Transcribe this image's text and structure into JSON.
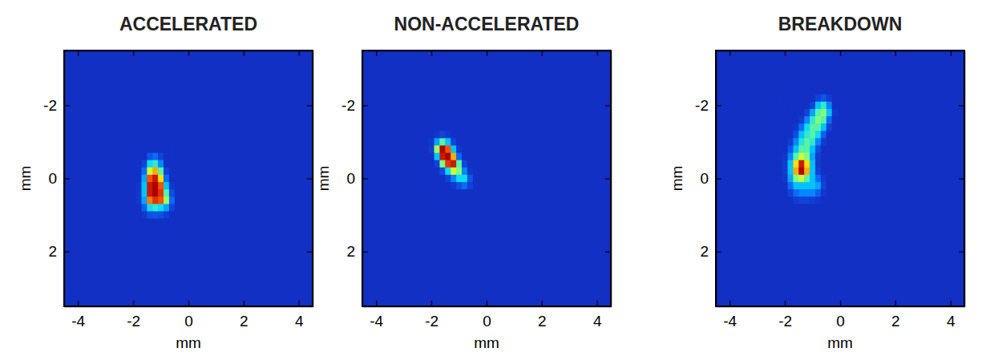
{
  "chart_data": [
    {
      "type": "heatmap",
      "title": "ACCELERATED",
      "xlabel": "mm",
      "ylabel": "mm",
      "xlim": [
        -4.5,
        4.5
      ],
      "ylim": [
        -3.5,
        3.5
      ],
      "xticks": [
        -4,
        -2,
        0,
        2,
        4
      ],
      "yticks": [
        -2,
        0,
        2
      ],
      "zlim": [
        0,
        1
      ],
      "x": [
        -2.0,
        -1.8,
        -1.6,
        -1.4,
        -1.2,
        -1.0,
        -0.8,
        -0.6,
        -0.4
      ],
      "y": [
        -0.8,
        -0.6,
        -0.4,
        -0.2,
        0.0,
        0.2,
        0.4,
        0.6,
        0.8,
        1.0,
        1.2
      ],
      "z": [
        [
          0,
          0,
          0,
          0,
          0,
          0,
          0,
          0,
          0
        ],
        [
          0,
          0,
          0,
          0.1,
          0.15,
          0.05,
          0,
          0,
          0
        ],
        [
          0,
          0,
          0.05,
          0.35,
          0.4,
          0.2,
          0,
          0,
          0
        ],
        [
          0,
          0,
          0.15,
          0.6,
          0.75,
          0.45,
          0.05,
          0,
          0
        ],
        [
          0,
          0,
          0.25,
          0.85,
          0.95,
          0.7,
          0.15,
          0,
          0
        ],
        [
          0,
          0.02,
          0.3,
          0.95,
          1.0,
          0.85,
          0.3,
          0.02,
          0
        ],
        [
          0,
          0.02,
          0.3,
          0.95,
          1.0,
          0.9,
          0.45,
          0.08,
          0
        ],
        [
          0,
          0.02,
          0.25,
          0.8,
          0.9,
          0.85,
          0.55,
          0.15,
          0
        ],
        [
          0,
          0,
          0.12,
          0.35,
          0.4,
          0.35,
          0.25,
          0.06,
          0
        ],
        [
          0,
          0,
          0.02,
          0.08,
          0.1,
          0.08,
          0.04,
          0,
          0
        ],
        [
          0,
          0,
          0,
          0,
          0,
          0,
          0,
          0,
          0
        ]
      ]
    },
    {
      "type": "heatmap",
      "title": "NON-ACCELERATED",
      "xlabel": "mm",
      "ylabel": "mm",
      "xlim": [
        -4.5,
        4.5
      ],
      "ylim": [
        -3.5,
        3.5
      ],
      "xticks": [
        -4,
        -2,
        0,
        2,
        4
      ],
      "yticks": [
        -2,
        0,
        2
      ],
      "zlim": [
        0,
        1
      ],
      "x": [
        -2.2,
        -2.0,
        -1.8,
        -1.6,
        -1.4,
        -1.2,
        -1.0,
        -0.8,
        -0.6,
        -0.4
      ],
      "y": [
        -1.4,
        -1.2,
        -1.0,
        -0.8,
        -0.6,
        -0.4,
        -0.2,
        0.0,
        0.2,
        0.4
      ],
      "z": [
        [
          0,
          0,
          0,
          0,
          0,
          0,
          0,
          0,
          0,
          0
        ],
        [
          0,
          0,
          0.02,
          0.05,
          0.02,
          0,
          0,
          0,
          0,
          0
        ],
        [
          0,
          0.02,
          0.25,
          0.45,
          0.3,
          0.05,
          0,
          0,
          0,
          0
        ],
        [
          0,
          0.03,
          0.55,
          1.0,
          0.85,
          0.3,
          0.02,
          0,
          0,
          0
        ],
        [
          0,
          0,
          0.3,
          0.95,
          1.0,
          0.75,
          0.15,
          0,
          0,
          0
        ],
        [
          0,
          0,
          0.05,
          0.5,
          0.9,
          0.95,
          0.45,
          0.05,
          0,
          0
        ],
        [
          0,
          0,
          0,
          0.08,
          0.35,
          0.6,
          0.5,
          0.2,
          0.02,
          0
        ],
        [
          0,
          0,
          0,
          0,
          0.05,
          0.2,
          0.35,
          0.35,
          0.1,
          0
        ],
        [
          0,
          0,
          0,
          0,
          0,
          0.02,
          0.08,
          0.15,
          0.05,
          0
        ],
        [
          0,
          0,
          0,
          0,
          0,
          0,
          0,
          0,
          0,
          0
        ]
      ]
    },
    {
      "type": "heatmap",
      "title": "BREAKDOWN",
      "xlabel": "mm",
      "ylabel": "mm",
      "xlim": [
        -4.5,
        4.5
      ],
      "ylim": [
        -3.5,
        3.5
      ],
      "xticks": [
        -4,
        -2,
        0,
        2,
        4
      ],
      "yticks": [
        -2,
        0,
        2
      ],
      "zlim": [
        0,
        1
      ],
      "x": [
        -2.2,
        -2.0,
        -1.8,
        -1.6,
        -1.4,
        -1.2,
        -1.0,
        -0.8,
        -0.6,
        -0.4,
        -0.2
      ],
      "y": [
        -2.4,
        -2.2,
        -2.0,
        -1.8,
        -1.6,
        -1.4,
        -1.2,
        -1.0,
        -0.8,
        -0.6,
        -0.4,
        -0.2,
        0.0,
        0.2,
        0.4,
        0.6,
        0.8
      ],
      "z": [
        [
          0,
          0,
          0,
          0,
          0,
          0,
          0,
          0,
          0,
          0,
          0
        ],
        [
          0,
          0,
          0,
          0,
          0,
          0,
          0,
          0.05,
          0.1,
          0.03,
          0
        ],
        [
          0,
          0,
          0,
          0,
          0,
          0,
          0.05,
          0.3,
          0.4,
          0.2,
          0
        ],
        [
          0,
          0,
          0,
          0,
          0,
          0.05,
          0.25,
          0.45,
          0.5,
          0.3,
          0.02
        ],
        [
          0,
          0,
          0,
          0,
          0.03,
          0.2,
          0.4,
          0.5,
          0.45,
          0.15,
          0
        ],
        [
          0,
          0,
          0,
          0.02,
          0.15,
          0.35,
          0.45,
          0.45,
          0.3,
          0.05,
          0
        ],
        [
          0,
          0,
          0,
          0.08,
          0.3,
          0.4,
          0.45,
          0.35,
          0.12,
          0,
          0
        ],
        [
          0,
          0,
          0.03,
          0.2,
          0.38,
          0.45,
          0.4,
          0.2,
          0.03,
          0,
          0
        ],
        [
          0,
          0,
          0.1,
          0.3,
          0.45,
          0.45,
          0.3,
          0.08,
          0,
          0,
          0
        ],
        [
          0,
          0.02,
          0.2,
          0.45,
          0.6,
          0.5,
          0.25,
          0.03,
          0,
          0,
          0
        ],
        [
          0,
          0.03,
          0.3,
          0.7,
          0.95,
          0.7,
          0.3,
          0.03,
          0,
          0,
          0
        ],
        [
          0,
          0.03,
          0.3,
          0.75,
          1.0,
          0.75,
          0.3,
          0.05,
          0,
          0,
          0
        ],
        [
          0,
          0.02,
          0.25,
          0.5,
          0.6,
          0.45,
          0.3,
          0.15,
          0.03,
          0,
          0
        ],
        [
          0,
          0,
          0.15,
          0.3,
          0.3,
          0.3,
          0.3,
          0.25,
          0.05,
          0,
          0
        ],
        [
          0,
          0,
          0.05,
          0.15,
          0.2,
          0.2,
          0.2,
          0.12,
          0.02,
          0,
          0
        ],
        [
          0,
          0,
          0,
          0.03,
          0.05,
          0.05,
          0.04,
          0.02,
          0,
          0,
          0
        ],
        [
          0,
          0,
          0,
          0,
          0,
          0,
          0,
          0,
          0,
          0,
          0
        ]
      ]
    }
  ]
}
